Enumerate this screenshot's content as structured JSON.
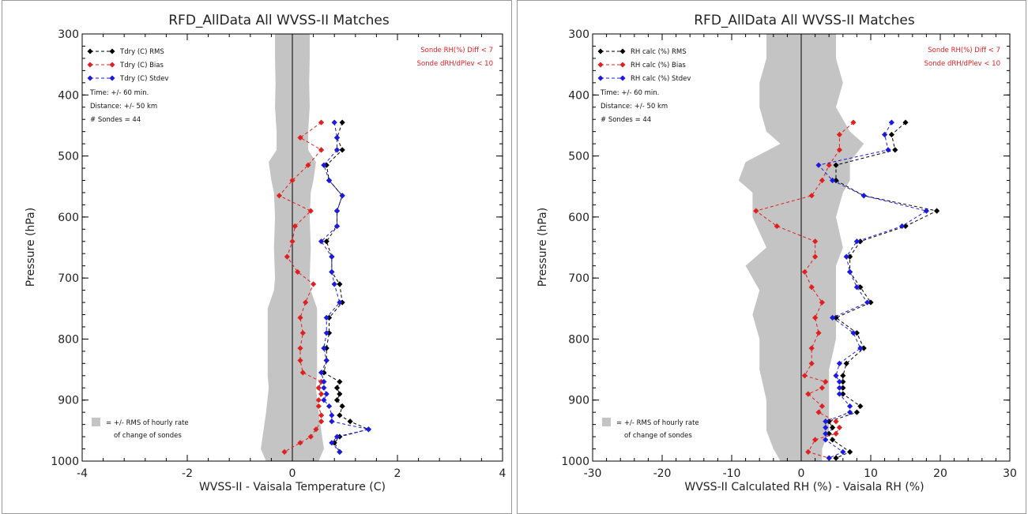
{
  "chart_data": [
    {
      "type": "scatter",
      "title": "RFD_AllData All WVSS-II Matches",
      "xlabel": "WVSS-II - Vaisala Temperature (C)",
      "ylabel": "Pressure (hPa)",
      "xlim": [
        -4,
        4
      ],
      "ylim": [
        1000,
        300
      ],
      "y_reversed": true,
      "xticks": [
        "-4",
        "-2",
        "0",
        "2",
        "4"
      ],
      "yticks": [
        "300",
        "400",
        "500",
        "600",
        "700",
        "800",
        "900",
        "1000"
      ],
      "grid": false,
      "legend_position": "top-left",
      "annotations": {
        "filter_lines": [
          "Sonde RH(%) Diff < 7",
          "Sonde dRH/dPlev < 10"
        ],
        "info_lines": [
          "Time: +/- 60 min.",
          "Distance: +/- 50 km",
          "# Sondes = 44"
        ],
        "band_note_lines": [
          "= +/- RMS of hourly rate",
          "of change of sondes"
        ]
      },
      "band": {
        "pressure": [
          300,
          340,
          380,
          420,
          460,
          490,
          510,
          540,
          560,
          600,
          650,
          700,
          720,
          750,
          800,
          860,
          880,
          920,
          950,
          980,
          1000
        ],
        "half_width": [
          0.33,
          0.33,
          0.32,
          0.33,
          0.3,
          0.3,
          0.45,
          0.4,
          0.35,
          0.33,
          0.35,
          0.33,
          0.35,
          0.47,
          0.47,
          0.47,
          0.45,
          0.5,
          0.55,
          0.6,
          0.5
        ]
      },
      "series": [
        {
          "name": "Tdry (C) RMS",
          "color": "#000000",
          "pressure": [
            445,
            470,
            490,
            515,
            540,
            565,
            590,
            615,
            640,
            665,
            690,
            710,
            740,
            765,
            790,
            815,
            835,
            855,
            870,
            880,
            890,
            900,
            910,
            925,
            935,
            948,
            960,
            970,
            985
          ],
          "x": [
            0.95,
            0.85,
            0.95,
            0.65,
            0.7,
            0.95,
            0.85,
            0.85,
            0.65,
            0.75,
            0.75,
            0.9,
            0.95,
            0.7,
            0.7,
            0.65,
            0.65,
            0.6,
            0.9,
            0.85,
            0.9,
            0.85,
            0.95,
            0.9,
            1.1,
            1.45,
            0.9,
            0.8,
            0.9
          ]
        },
        {
          "name": "Tdry (C) Bias",
          "color": "#e02020",
          "pressure": [
            445,
            470,
            490,
            515,
            540,
            565,
            590,
            615,
            640,
            665,
            690,
            710,
            740,
            765,
            790,
            815,
            835,
            855,
            870,
            880,
            890,
            900,
            910,
            925,
            935,
            948,
            960,
            970,
            985
          ],
          "x": [
            0.55,
            0.15,
            0.55,
            0.3,
            0.0,
            -0.25,
            0.35,
            0.05,
            0.0,
            -0.1,
            0.1,
            0.4,
            0.25,
            0.15,
            0.2,
            0.15,
            0.15,
            0.2,
            0.55,
            0.5,
            0.55,
            0.5,
            0.5,
            0.55,
            0.55,
            0.45,
            0.35,
            0.15,
            -0.15
          ]
        },
        {
          "name": "Tdry (C) Stdev",
          "color": "#1a1ae0",
          "pressure": [
            445,
            470,
            490,
            515,
            540,
            565,
            590,
            615,
            640,
            665,
            690,
            710,
            740,
            765,
            790,
            815,
            835,
            855,
            870,
            880,
            890,
            900,
            910,
            925,
            935,
            948,
            960,
            970,
            985
          ],
          "x": [
            0.8,
            0.85,
            0.85,
            0.6,
            0.7,
            0.95,
            0.85,
            0.85,
            0.55,
            0.75,
            0.75,
            0.8,
            0.9,
            0.65,
            0.65,
            0.6,
            0.65,
            0.55,
            0.6,
            0.6,
            0.65,
            0.6,
            0.7,
            0.75,
            0.75,
            1.45,
            0.85,
            0.75,
            0.9
          ]
        }
      ]
    },
    {
      "type": "scatter",
      "title": "RFD_AllData All WVSS-II Matches",
      "xlabel": "WVSS-II Calculated RH (%) - Vaisala RH (%)",
      "ylabel": "Pressure (hPa)",
      "xlim": [
        -30,
        30
      ],
      "ylim": [
        1000,
        300
      ],
      "y_reversed": true,
      "xticks": [
        "-30",
        "-20",
        "-10",
        "0",
        "10",
        "20",
        "30"
      ],
      "yticks": [
        "300",
        "400",
        "500",
        "600",
        "700",
        "800",
        "900",
        "1000"
      ],
      "grid": false,
      "legend_position": "top-left",
      "annotations": {
        "filter_lines": [
          "Sonde RH(%) Diff < 7",
          "Sonde dRH/dPlev < 10"
        ],
        "info_lines": [
          "Time: +/- 60 min.",
          "Distance: +/- 50 km",
          "# Sondes = 44"
        ],
        "band_note_lines": [
          "= +/- RMS of hourly rate",
          "of change of sondes"
        ]
      },
      "band": {
        "pressure": [
          300,
          340,
          380,
          420,
          460,
          480,
          510,
          540,
          560,
          600,
          650,
          680,
          720,
          760,
          800,
          850,
          900,
          950,
          980,
          1000
        ],
        "left_x": [
          -5,
          -5,
          -6,
          -6,
          -5,
          -3,
          -8,
          -9,
          -7,
          -7,
          -5,
          -8,
          -6,
          -7,
          -6,
          -6,
          -5,
          -5,
          -4,
          -3
        ],
        "right_x": [
          5,
          5,
          6,
          5,
          7,
          9,
          7,
          7,
          6,
          5,
          6,
          5,
          5,
          5,
          5,
          4,
          4,
          4,
          3,
          3
        ]
      },
      "series": [
        {
          "name": "RH calc (%) RMS",
          "color": "#000000",
          "pressure": [
            445,
            465,
            490,
            515,
            540,
            565,
            590,
            615,
            640,
            665,
            690,
            715,
            740,
            765,
            790,
            815,
            840,
            860,
            870,
            880,
            890,
            910,
            920,
            935,
            945,
            955,
            965,
            985,
            995
          ],
          "x": [
            15,
            13,
            13.5,
            5,
            5,
            9,
            19.5,
            15,
            8.5,
            7,
            7,
            8.5,
            10,
            5,
            8,
            9,
            6.5,
            6,
            6,
            6,
            6,
            8.5,
            8,
            4,
            4.5,
            4,
            4.5,
            7,
            5
          ]
        },
        {
          "name": "RH calc (%) Bias",
          "color": "#e02020",
          "pressure": [
            445,
            465,
            490,
            515,
            540,
            565,
            590,
            615,
            640,
            665,
            690,
            715,
            740,
            765,
            790,
            815,
            840,
            860,
            870,
            880,
            890,
            910,
            920,
            935,
            945,
            955,
            965,
            985,
            995
          ],
          "x": [
            7.5,
            5.5,
            5.5,
            4,
            3,
            1.5,
            -6.5,
            -3.5,
            2,
            2,
            0.5,
            1.5,
            3,
            2,
            2.5,
            1.5,
            1.5,
            0.5,
            3.5,
            3,
            1,
            3,
            2.5,
            5,
            5.5,
            5,
            2,
            1,
            4
          ]
        },
        {
          "name": "RH calc (%) Stdev",
          "color": "#1a1ae0",
          "pressure": [
            445,
            465,
            490,
            515,
            540,
            565,
            590,
            615,
            640,
            665,
            690,
            715,
            740,
            765,
            790,
            815,
            840,
            860,
            870,
            880,
            890,
            910,
            920,
            935,
            945,
            955,
            965,
            985,
            995
          ],
          "x": [
            13,
            12,
            12.5,
            2.5,
            4.5,
            9,
            18,
            14.5,
            8,
            6.5,
            7,
            8,
            9.5,
            4.5,
            7.5,
            8.5,
            5.5,
            5,
            5.5,
            5.5,
            5.5,
            7,
            7,
            3.5,
            3.5,
            3.5,
            3.5,
            6,
            4
          ]
        }
      ]
    }
  ]
}
